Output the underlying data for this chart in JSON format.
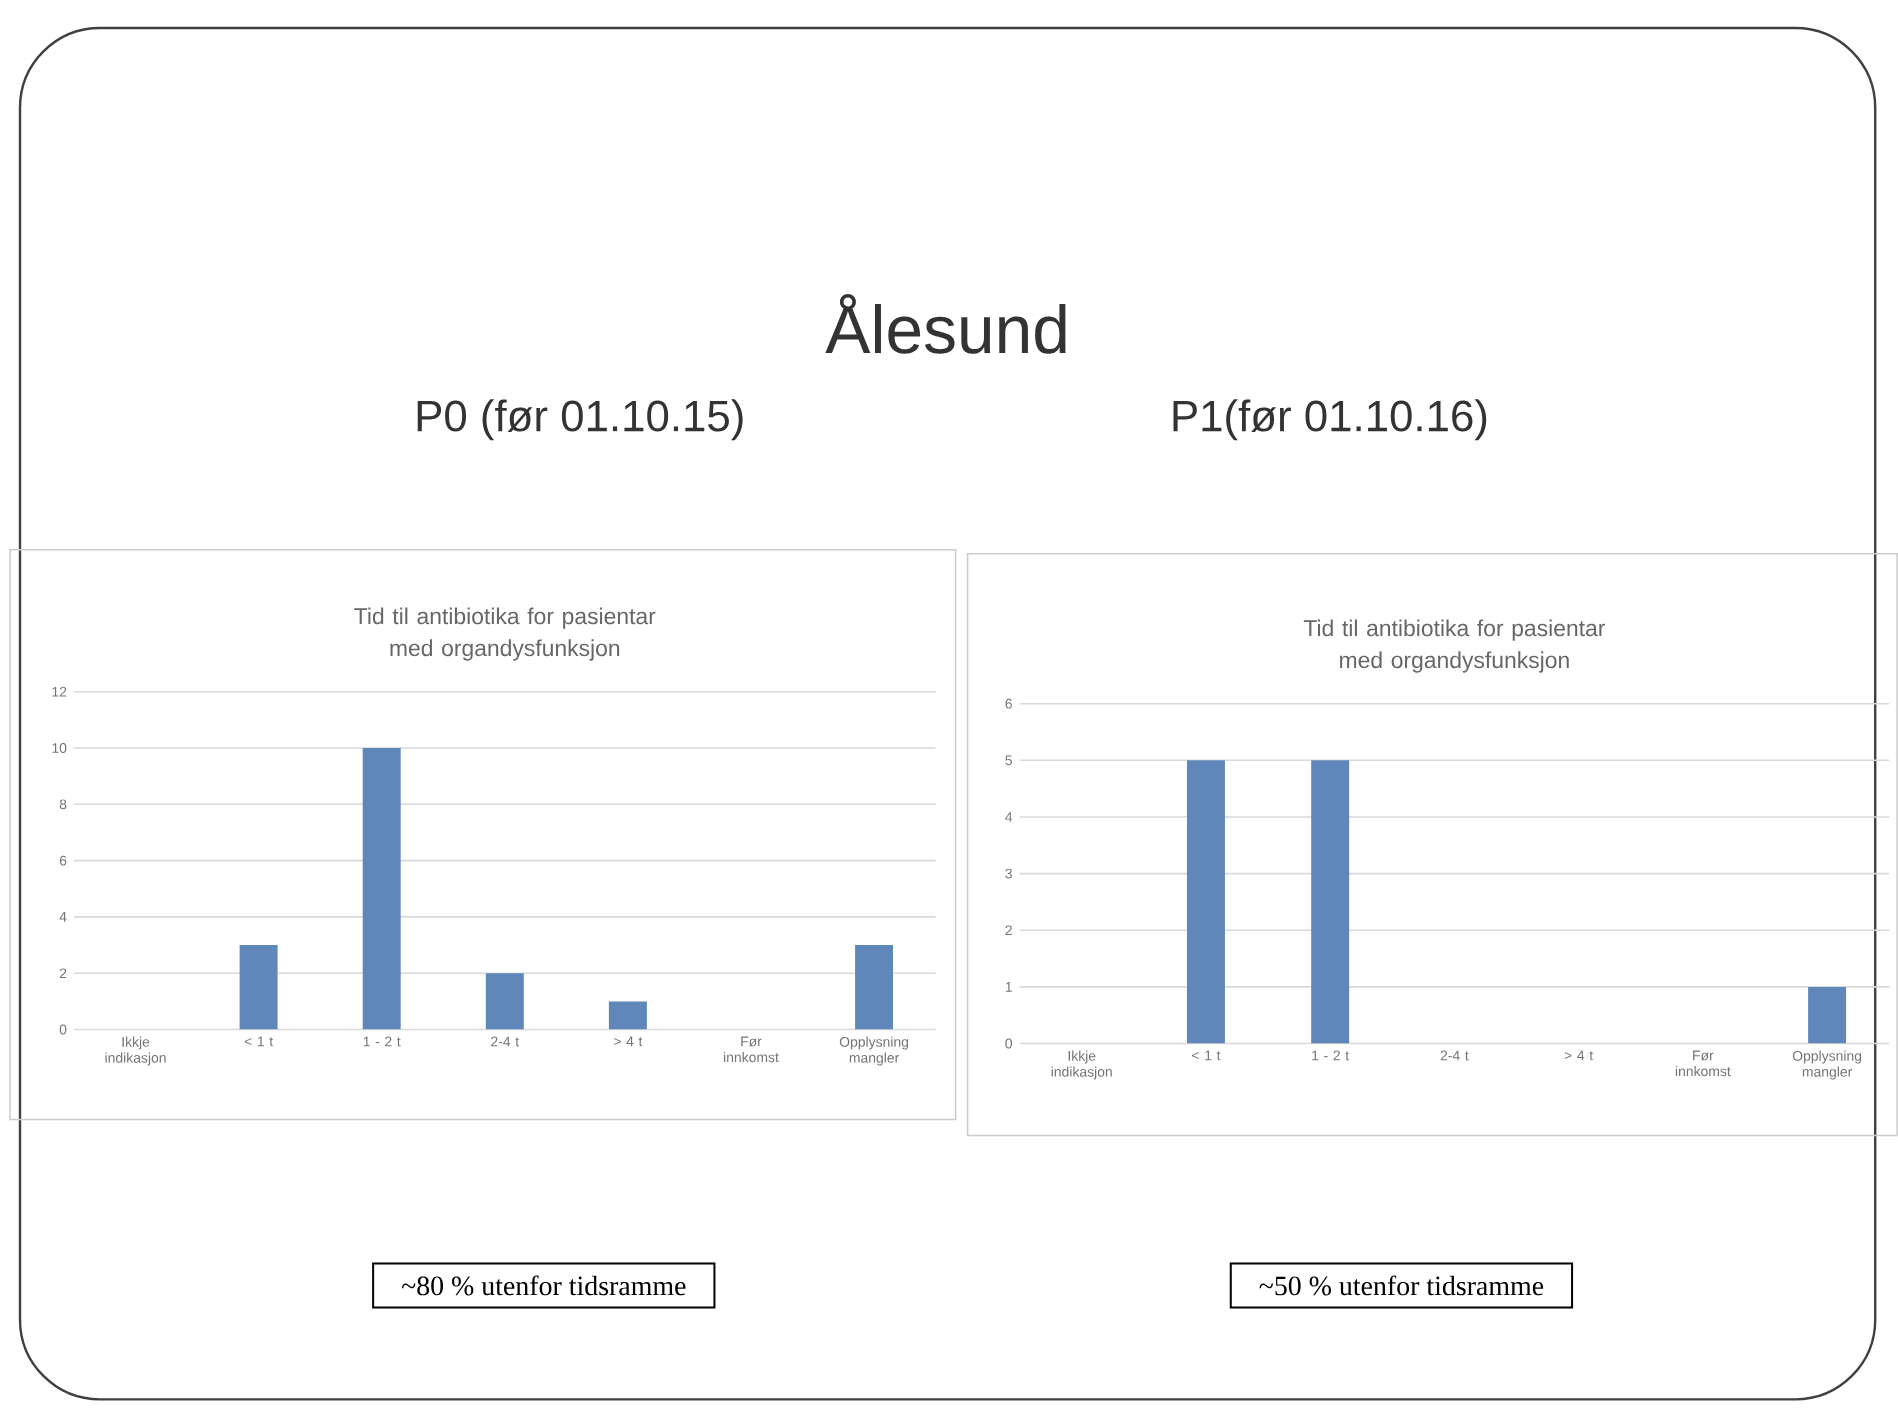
{
  "chart_data": [
    {
      "type": "bar",
      "title": "Tid til antibiotika for pasientar med organdysfunksjon",
      "subtitle": "P0 (før 01.10.15)",
      "categories": [
        "Ikkje indikasjon",
        "< 1 t",
        "1 - 2 t",
        "2-4 t",
        "> 4 t",
        "Før innkomst",
        "Opplysning mangler"
      ],
      "values": [
        0,
        3,
        10,
        2,
        1,
        0,
        3
      ],
      "color": "#6087ba",
      "ylim": [
        0,
        12
      ],
      "yticks": [
        0,
        2,
        4,
        6,
        8,
        10,
        12
      ],
      "grid": "y",
      "annotations": [
        "Ålesund",
        "~80 % utenfor tidsramme"
      ]
    },
    {
      "type": "bar",
      "title": "Tid til antibiotika for pasientar med organdysfunksjon",
      "subtitle": "P1(før 01.10.16)",
      "categories": [
        "Ikkje indikasjon",
        "< 1 t",
        "1 - 2 t",
        "2-4 t",
        "> 4 t",
        "Før innkomst",
        "Opplysning mangler"
      ],
      "values": [
        0,
        5,
        5,
        0,
        0,
        0,
        1
      ],
      "color": "#6087ba",
      "ylim": [
        0,
        6
      ],
      "yticks": [
        0,
        1,
        2,
        3,
        4,
        5,
        6
      ],
      "grid": "y",
      "annotations": [
        "~50 % utenfor tidsramme"
      ]
    }
  ]
}
